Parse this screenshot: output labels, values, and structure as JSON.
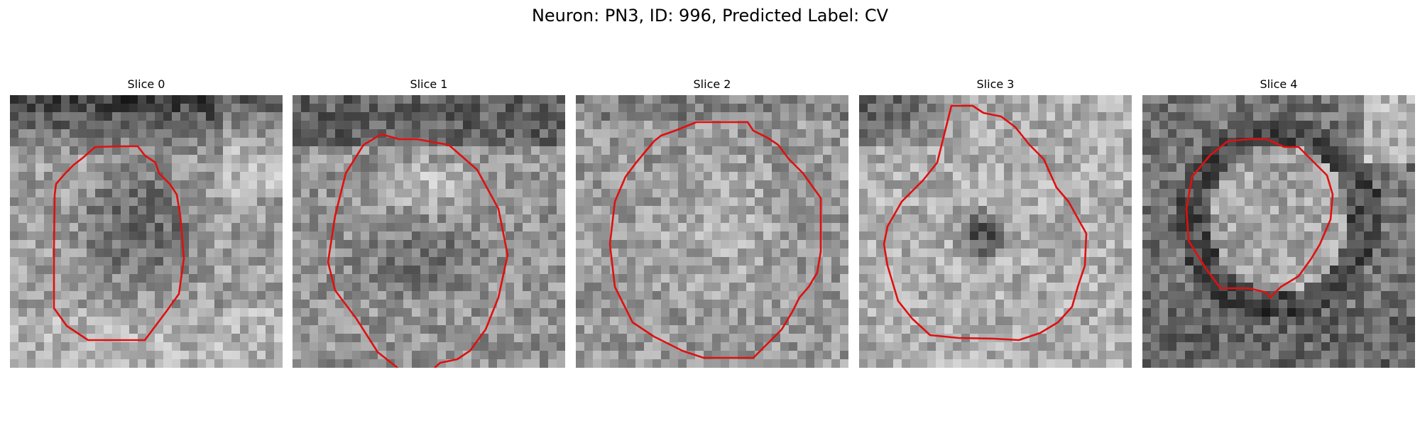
{
  "figure": {
    "title": "Neuron: PN3, ID: 996, Predicted Label: CV"
  },
  "panels": [
    {
      "title": "Slice 0",
      "contour_color": "#e01010"
    },
    {
      "title": "Slice 1",
      "contour_color": "#e01010"
    },
    {
      "title": "Slice 2",
      "contour_color": "#e01010"
    },
    {
      "title": "Slice 3",
      "contour_color": "#e01010"
    },
    {
      "title": "Slice 4",
      "contour_color": "#e01010"
    }
  ]
}
